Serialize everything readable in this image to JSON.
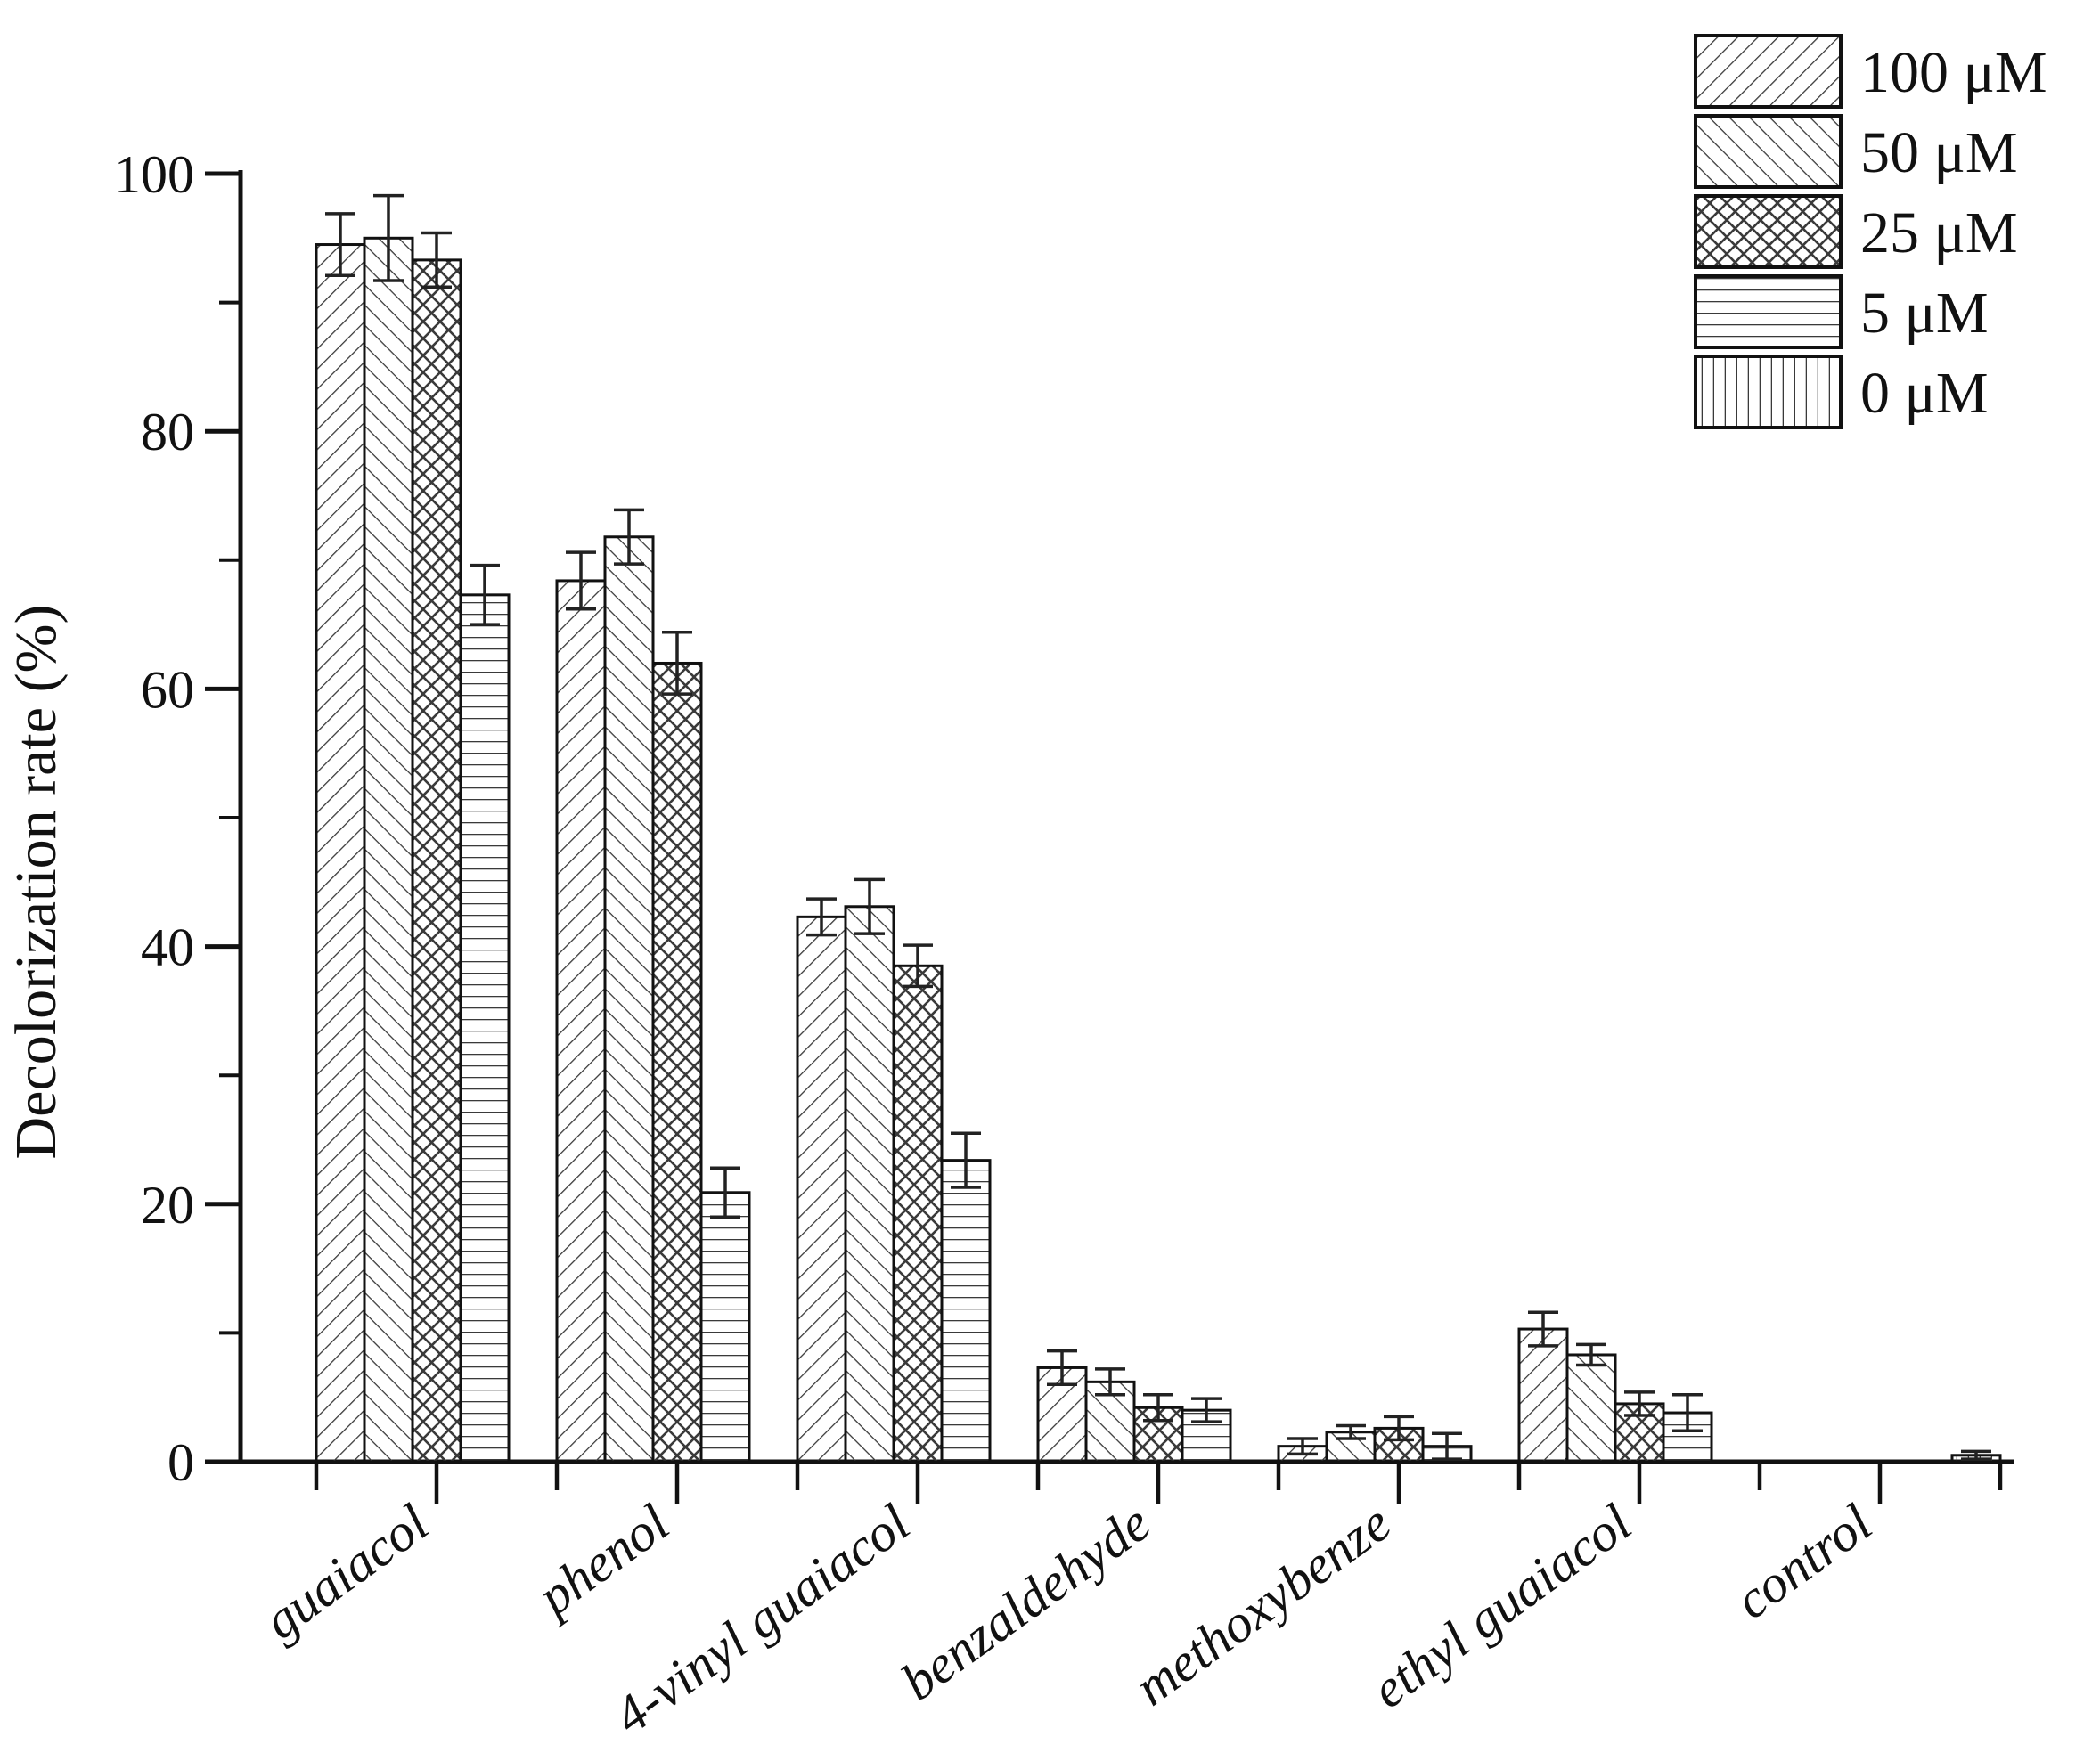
{
  "chart_data": {
    "type": "bar",
    "title": "",
    "xlabel": "",
    "ylabel": "Decolorization rate (%)",
    "categories": [
      "guaiacol",
      "phenol",
      "4-vinyl guaiacol",
      "benzaldehyde",
      "methoxybenze",
      "ethyl guaiacol",
      "control"
    ],
    "series": [
      {
        "name": "100 μM",
        "pattern": "diagonal-forward",
        "values": [
          94.5,
          68.4,
          42.3,
          7.3,
          1.2,
          10.3,
          0
        ],
        "errors": [
          2.4,
          2.2,
          1.4,
          1.3,
          0.6,
          1.3,
          0
        ]
      },
      {
        "name": "50 μM",
        "pattern": "diagonal-backward",
        "values": [
          95.0,
          71.8,
          43.1,
          6.2,
          2.3,
          8.3,
          0
        ],
        "errors": [
          3.3,
          2.1,
          2.1,
          1.0,
          0.5,
          0.8,
          0
        ]
      },
      {
        "name": "25 μM",
        "pattern": "crosshatch",
        "values": [
          93.3,
          62.0,
          38.5,
          4.2,
          2.6,
          4.5,
          0
        ],
        "errors": [
          2.1,
          2.4,
          1.6,
          1.0,
          0.9,
          0.9,
          0
        ]
      },
      {
        "name": "5 μM",
        "pattern": "horizontal-lines",
        "values": [
          67.3,
          20.9,
          23.4,
          4.0,
          1.2,
          3.8,
          0
        ],
        "errors": [
          2.3,
          1.9,
          2.1,
          0.9,
          1.0,
          1.4,
          0
        ]
      },
      {
        "name": "0 μM",
        "pattern": "vertical-lines",
        "values": [
          0,
          0,
          0,
          0,
          0,
          0,
          0.5
        ],
        "errors": [
          0,
          0,
          0,
          0,
          0,
          0,
          0.3
        ]
      }
    ],
    "ylim": [
      0,
      100
    ],
    "yticks": [
      0,
      20,
      40,
      60,
      80,
      100
    ],
    "minor_ytick_step": 10,
    "error_bars": "symmetric, capped",
    "grid": false,
    "legend_position": "top-right",
    "legend_frame": false,
    "colors": {
      "background": "#ffffff",
      "ink": "#111111",
      "hatch": "#3a3a3a",
      "error": "#222222"
    }
  }
}
